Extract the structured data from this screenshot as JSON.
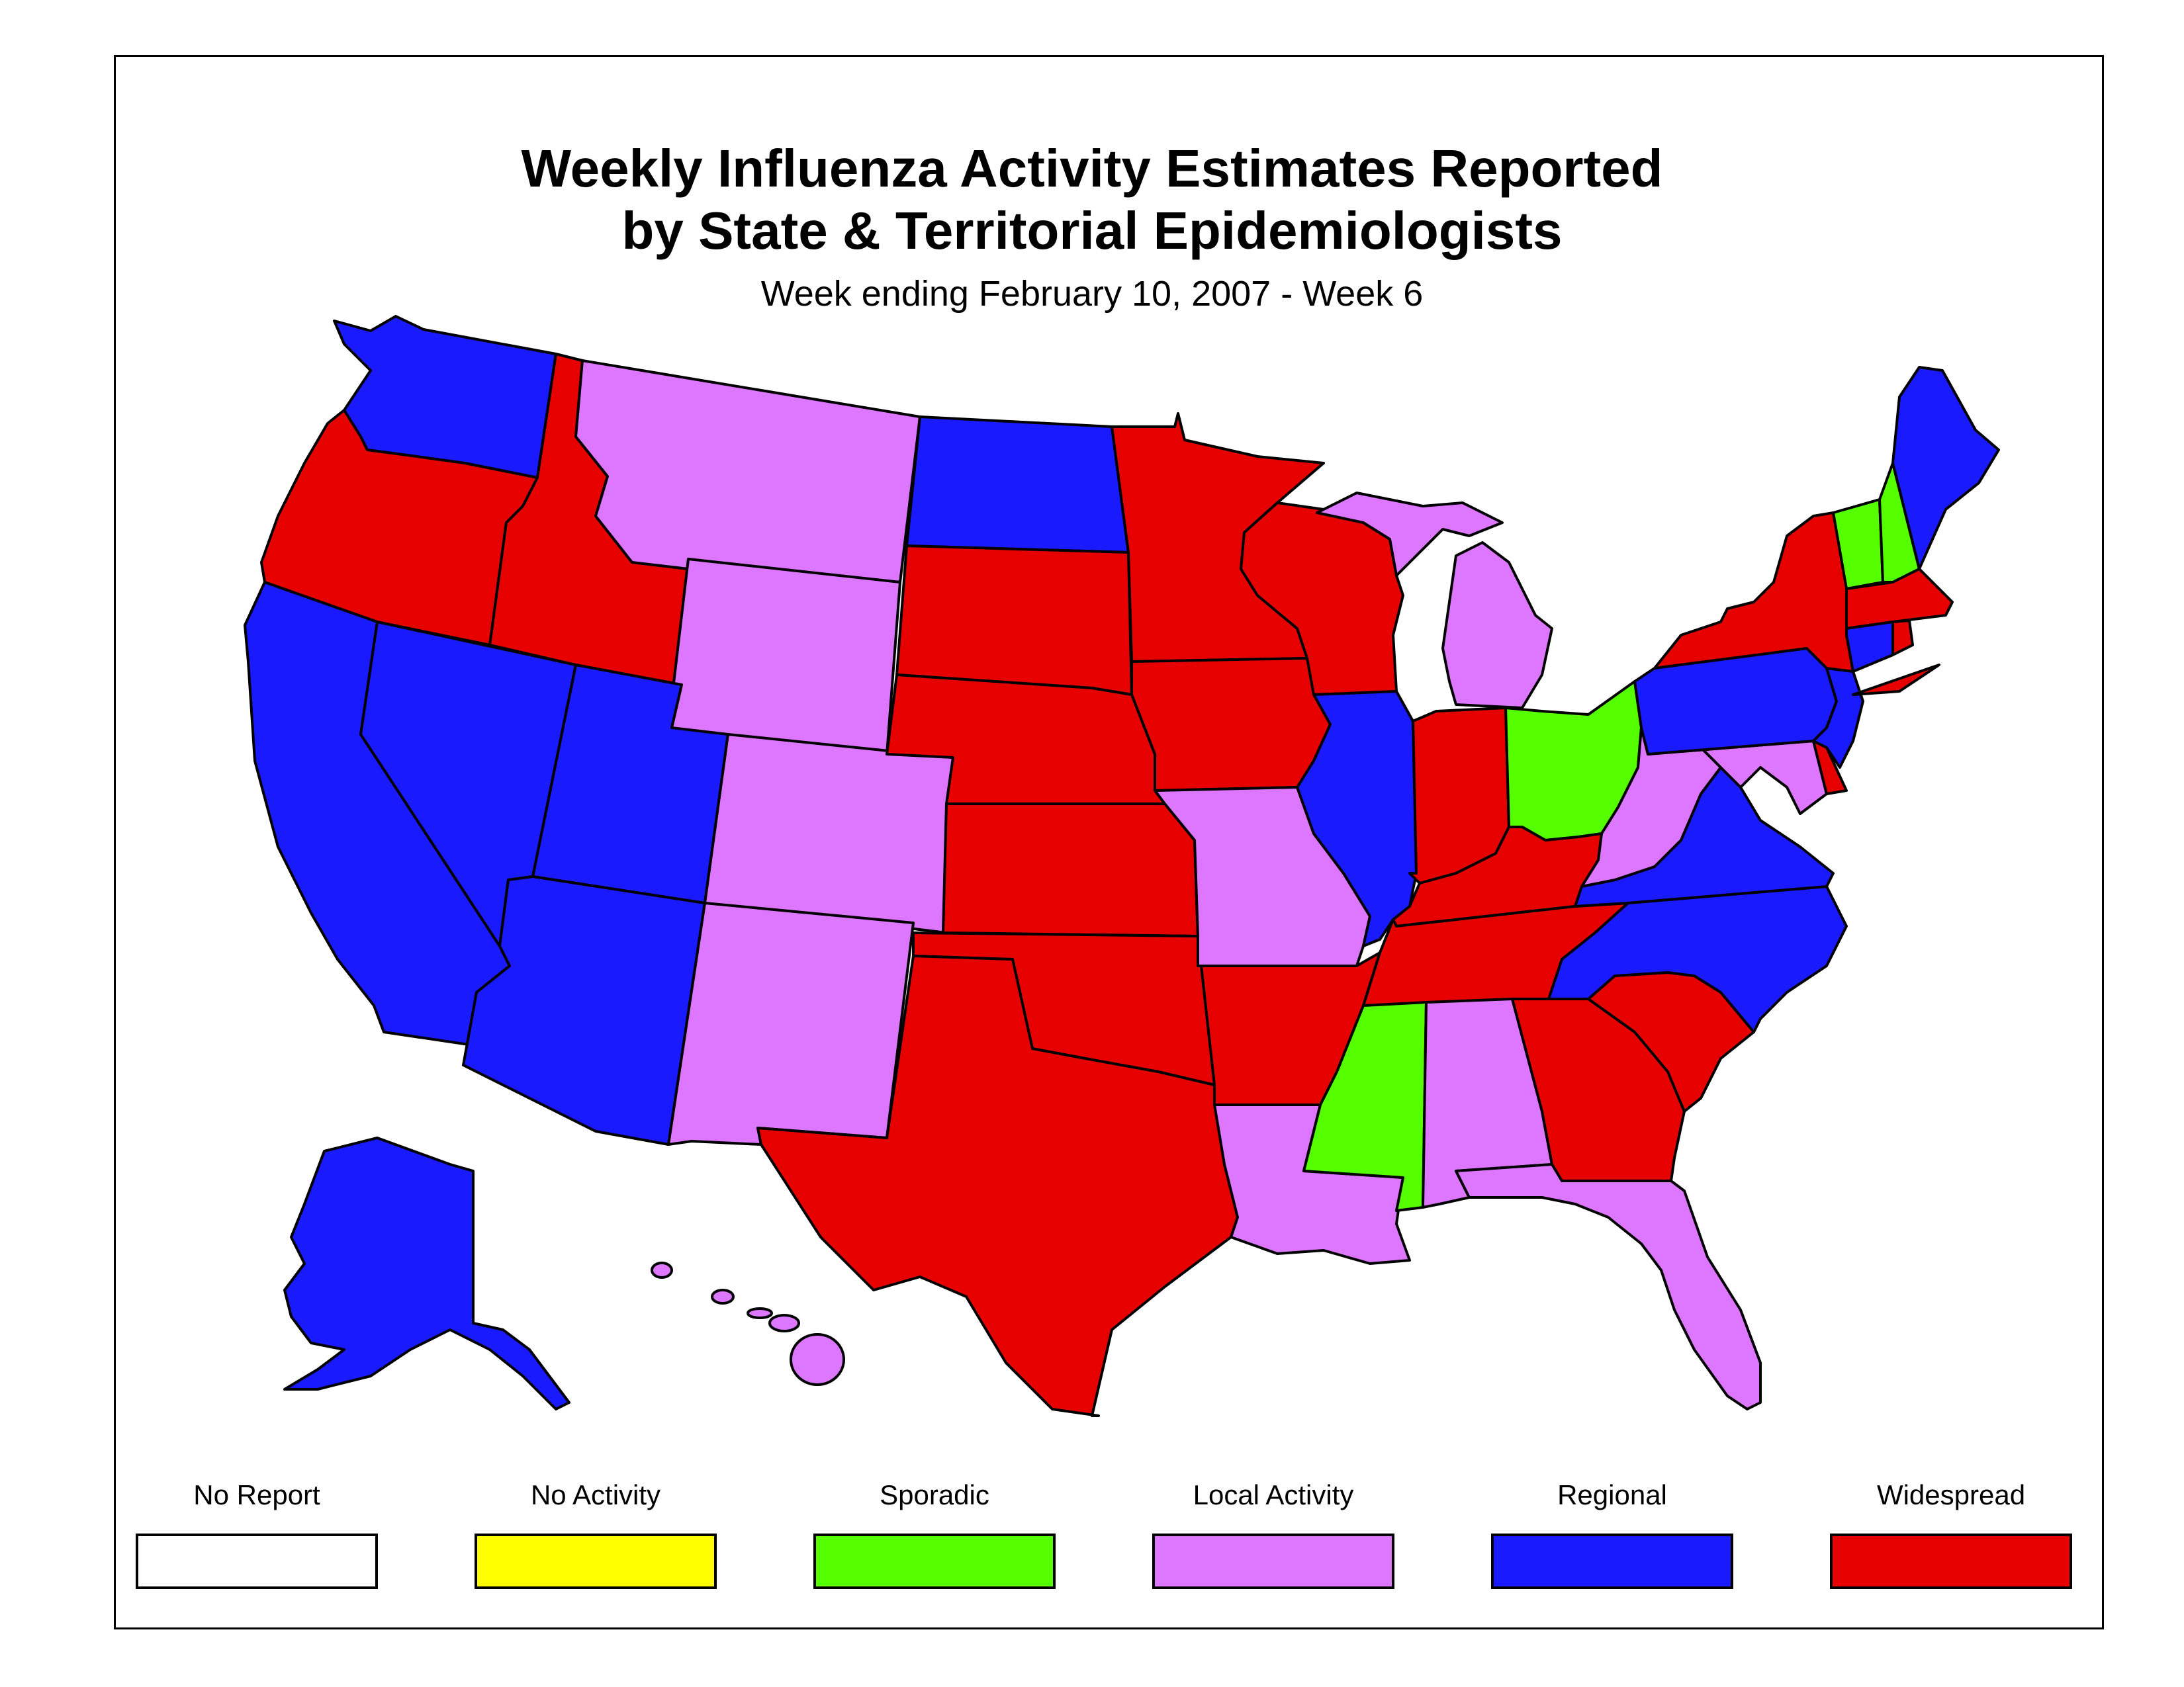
{
  "title": {
    "line1": "Weekly Influenza Activity Estimates Reported",
    "line2": "by State & Territorial Epidemiologists"
  },
  "subtitle": "Week ending February 10, 2007 - Week 6",
  "legend": [
    {
      "key": "no_report",
      "label": "No Report",
      "color": "#FFFFFF"
    },
    {
      "key": "no_activity",
      "label": "No Activity",
      "color": "#FFFF00"
    },
    {
      "key": "sporadic",
      "label": "Sporadic",
      "color": "#55FF00"
    },
    {
      "key": "local",
      "label": "Local Activity",
      "color": "#DD77FF"
    },
    {
      "key": "regional",
      "label": "Regional",
      "color": "#1A1AFF"
    },
    {
      "key": "widespread",
      "label": "Widespread",
      "color": "#E60000"
    }
  ],
  "states": {
    "WA": "regional",
    "OR": "widespread",
    "CA": "regional",
    "NV": "regional",
    "ID": "widespread",
    "MT": "local",
    "WY": "local",
    "UT": "regional",
    "AZ": "regional",
    "CO": "local",
    "NM": "local",
    "ND": "regional",
    "SD": "widespread",
    "NE": "widespread",
    "KS": "widespread",
    "OK": "widespread",
    "TX": "widespread",
    "MN": "widespread",
    "IA": "widespread",
    "MO": "local",
    "AR": "widespread",
    "LA": "local",
    "WI": "widespread",
    "IL": "regional",
    "MI": "local",
    "IN": "widespread",
    "OH": "sporadic",
    "KY": "widespread",
    "TN": "widespread",
    "MS": "sporadic",
    "AL": "local",
    "GA": "widespread",
    "FL": "local",
    "SC": "widespread",
    "NC": "regional",
    "VA": "regional",
    "WV": "local",
    "MD": "local",
    "DE": "widespread",
    "PA": "regional",
    "NJ": "regional",
    "NY": "widespread",
    "CT": "regional",
    "RI": "widespread",
    "MA": "widespread",
    "VT": "sporadic",
    "NH": "sporadic",
    "ME": "regional",
    "AK": "regional",
    "HI": "local"
  }
}
